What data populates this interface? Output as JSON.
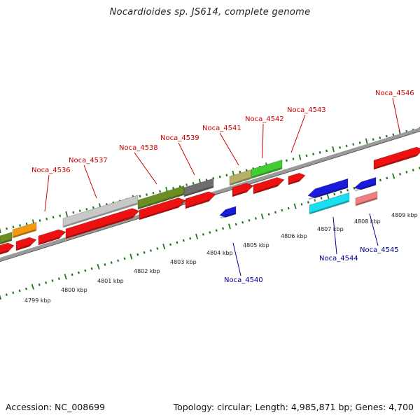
{
  "header": {
    "title": "Nocardioides sp. JS614, complete genome"
  },
  "footer": {
    "accession": "Accession: NC_008699",
    "summary": "Topology: circular; Length: 4,985,871 bp; Genes: 4,700"
  },
  "colors": {
    "forward_label": "#cc0000",
    "reverse_label": "#000099",
    "backbone": "#9a9a9a",
    "ticks": "#1f7a1f",
    "red": "#ee1111",
    "blue": "#1a1add",
    "cyan": "#18e0f0",
    "pink": "#f08080",
    "orange": "#f39a10",
    "olive": "#6b8e23",
    "light_olive": "#b5b066",
    "green": "#44cc33",
    "silver": "#c8c8c8",
    "gray": "#6e6e6e"
  },
  "kbp_labels": [
    "4799 kbp",
    "4800 kbp",
    "4801 kbp",
    "4802 kbp",
    "4803 kbp",
    "4804 kbp",
    "4805 kbp",
    "4806 kbp",
    "4807 kbp",
    "4808 kbp",
    "4809 kbp"
  ],
  "gene_labels": [
    {
      "text": "Noca_4536",
      "strand": "forward"
    },
    {
      "text": "Noca_4537",
      "strand": "forward"
    },
    {
      "text": "Noca_4538",
      "strand": "forward"
    },
    {
      "text": "Noca_4539",
      "strand": "forward"
    },
    {
      "text": "Noca_4541",
      "strand": "forward"
    },
    {
      "text": "Noca_4542",
      "strand": "forward"
    },
    {
      "text": "Noca_4543",
      "strand": "forward"
    },
    {
      "text": "Noca_4546",
      "strand": "forward"
    },
    {
      "text": "Noca_4540",
      "strand": "reverse"
    },
    {
      "text": "Noca_4544",
      "strand": "reverse"
    },
    {
      "text": "Noca_4545",
      "strand": "reverse"
    }
  ]
}
